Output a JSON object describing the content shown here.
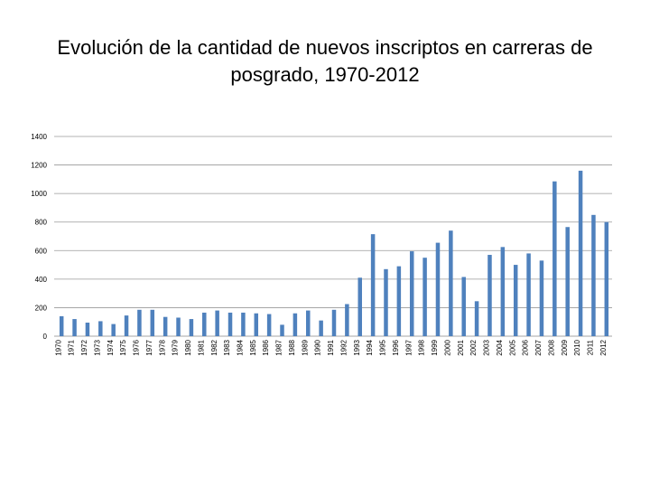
{
  "chart_data": {
    "type": "bar",
    "title": "Evolución de la cantidad de nuevos inscriptos en carreras de posgrado, 1970-2012",
    "xlabel": "",
    "ylabel": "",
    "ylim": [
      0,
      1400
    ],
    "yticks": [
      "0",
      "200",
      "400",
      "600",
      "800",
      "1000",
      "1200",
      "1400"
    ],
    "grid": true,
    "bar_color": "#4f81bd",
    "categories": [
      "1970",
      "1971",
      "1972",
      "1973",
      "1974",
      "1975",
      "1976",
      "1977",
      "1978",
      "1979",
      "1980",
      "1981",
      "1982",
      "1983",
      "1984",
      "1985",
      "1986",
      "1987",
      "1988",
      "1989",
      "1990",
      "1991",
      "1992",
      "1993",
      "1994",
      "1995",
      "1996",
      "1997",
      "1998",
      "1999",
      "2000",
      "2001",
      "2002",
      "2003",
      "2004",
      "2005",
      "2006",
      "2007",
      "2008",
      "2009",
      "2010",
      "2011",
      "2012"
    ],
    "values": [
      140,
      120,
      95,
      105,
      85,
      145,
      185,
      185,
      135,
      130,
      120,
      165,
      180,
      165,
      165,
      160,
      155,
      80,
      160,
      180,
      110,
      185,
      225,
      410,
      715,
      470,
      490,
      595,
      550,
      655,
      740,
      415,
      245,
      570,
      625,
      500,
      580,
      530,
      1085,
      765,
      1160,
      850,
      800
    ]
  }
}
